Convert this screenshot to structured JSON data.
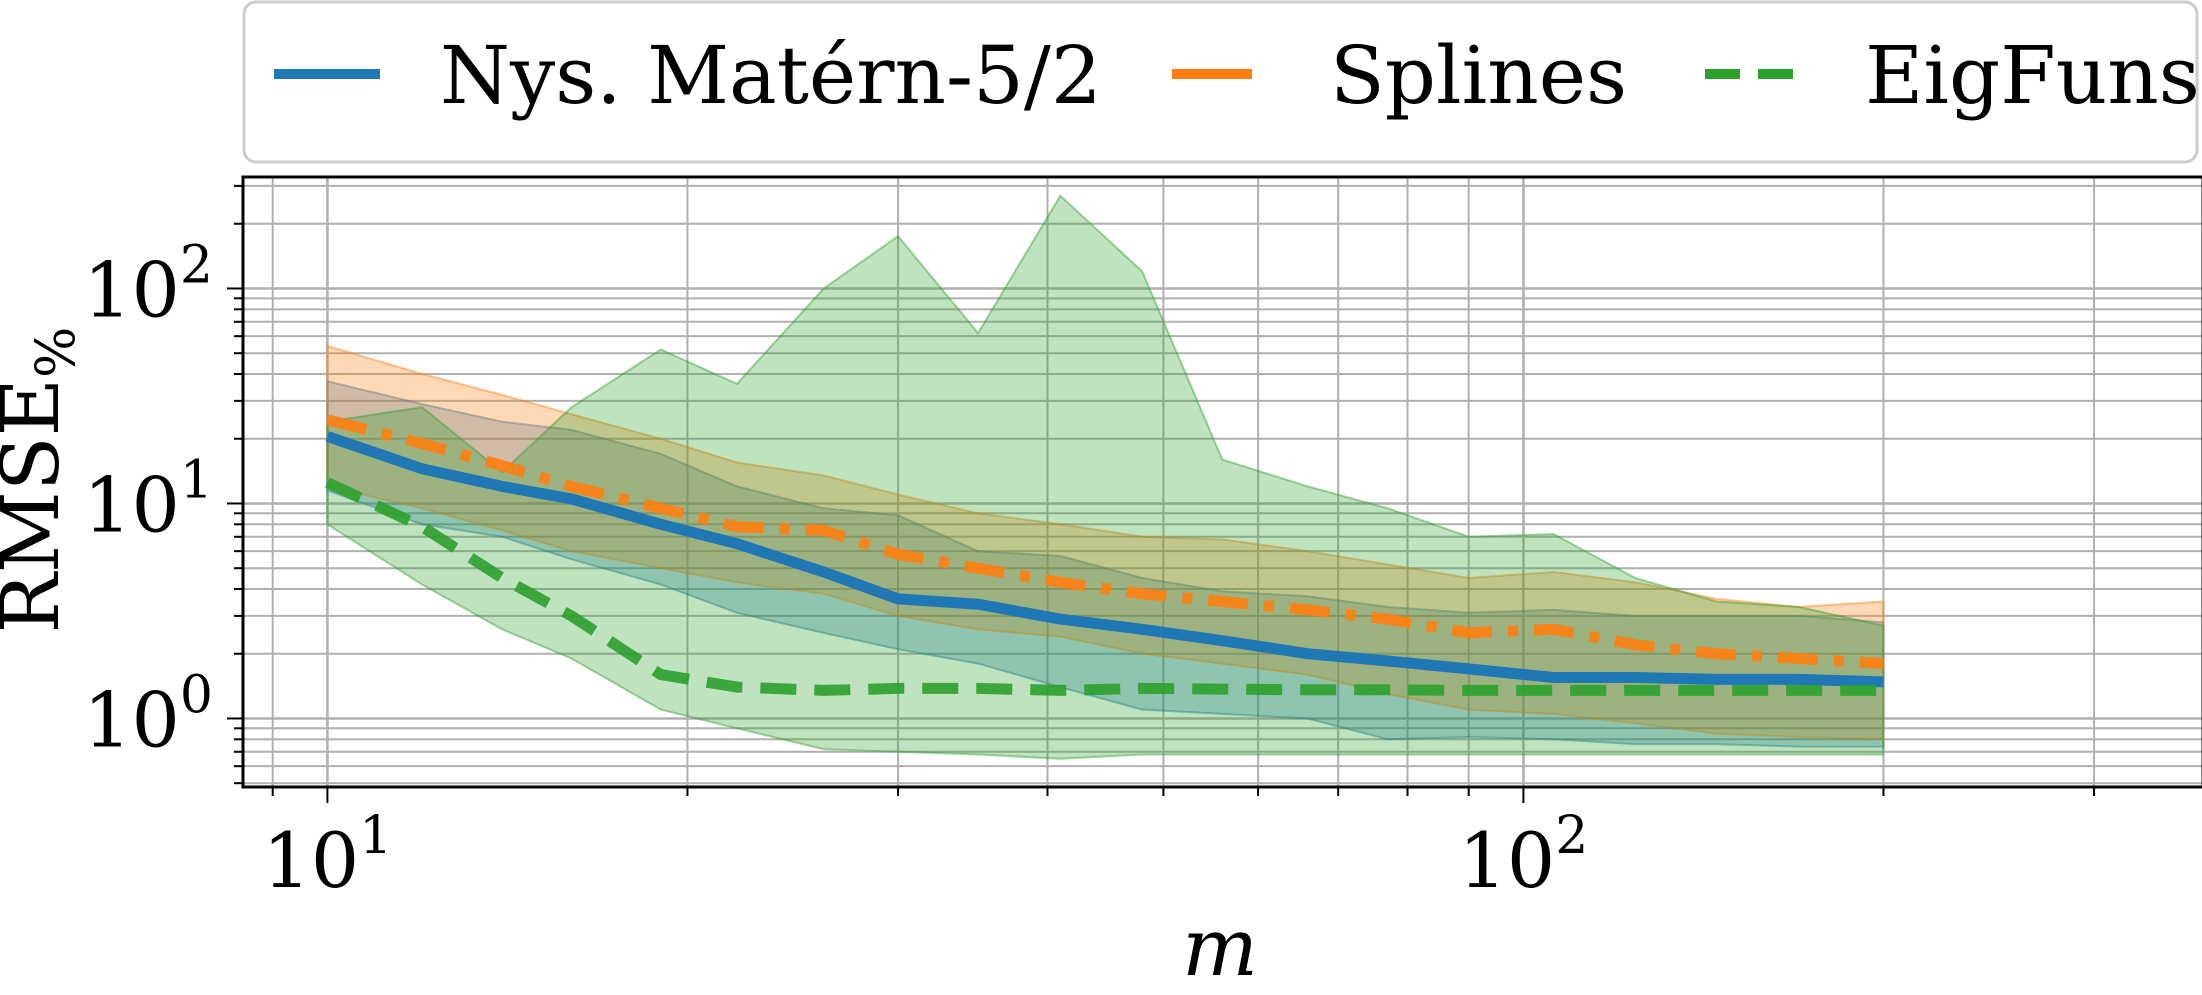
{
  "chart_data": {
    "type": "line",
    "xlabel": "m",
    "ylabel": "RMSE",
    "ylabel_subscript": "%",
    "x_scale": "log",
    "y_scale": "log",
    "xlim": [
      8.5,
      370
    ],
    "ylim": [
      0.48,
      330
    ],
    "grid": true,
    "legend_position": "top",
    "x_ticks": [
      {
        "value": 10,
        "base": "10",
        "exp": "1"
      },
      {
        "value": 100,
        "base": "10",
        "exp": "2"
      }
    ],
    "y_ticks": [
      {
        "value": 1,
        "base": "10",
        "exp": "0"
      },
      {
        "value": 10,
        "base": "10",
        "exp": "1"
      },
      {
        "value": 100,
        "base": "10",
        "exp": "2"
      }
    ],
    "series": [
      {
        "name": "Nys. Matérn-5/2",
        "color": "#1f77b4",
        "style": "solid",
        "x": [
          10,
          12,
          14,
          16,
          19,
          22,
          26,
          30,
          35,
          41,
          48,
          56,
          66,
          77,
          90,
          106,
          124,
          145,
          170,
          200
        ],
        "y": [
          20.5,
          14.5,
          12.0,
          10.5,
          8.0,
          6.5,
          4.8,
          3.6,
          3.4,
          2.9,
          2.6,
          2.3,
          2.0,
          1.85,
          1.7,
          1.55,
          1.55,
          1.52,
          1.52,
          1.48
        ],
        "band_upper": [
          37,
          29,
          24,
          22,
          17,
          12.0,
          9.5,
          8.8,
          6.0,
          5.7,
          4.5,
          3.9,
          3.7,
          3.3,
          3.1,
          3.2,
          3.0,
          3.0,
          3.0,
          2.8
        ],
        "band_lower": [
          11.5,
          8.0,
          7.0,
          5.5,
          4.2,
          3.1,
          2.5,
          2.1,
          1.8,
          1.4,
          1.1,
          1.05,
          1.0,
          0.8,
          0.82,
          0.8,
          0.76,
          0.76,
          0.74,
          0.74
        ]
      },
      {
        "name": "Splines",
        "color": "#ff7f0e",
        "style": "dashdot",
        "x": [
          10,
          12,
          14,
          16,
          19,
          22,
          26,
          30,
          35,
          41,
          48,
          56,
          66,
          77,
          90,
          106,
          124,
          145,
          170,
          200
        ],
        "y": [
          24.5,
          19.0,
          15.0,
          12.0,
          9.5,
          7.8,
          7.5,
          5.8,
          5.0,
          4.3,
          3.8,
          3.5,
          3.2,
          2.9,
          2.5,
          2.6,
          2.2,
          2.0,
          1.9,
          1.8
        ],
        "band_upper": [
          54,
          40,
          32,
          26,
          20,
          15.5,
          13.5,
          11.0,
          9.0,
          8.0,
          7.0,
          6.8,
          6.0,
          5.2,
          4.5,
          4.8,
          4.3,
          3.6,
          3.3,
          3.5
        ],
        "band_lower": [
          12.0,
          9.5,
          7.5,
          6.0,
          5.0,
          4.3,
          3.8,
          3.0,
          2.6,
          2.4,
          2.0,
          1.8,
          1.6,
          1.3,
          1.1,
          1.05,
          0.95,
          0.85,
          0.82,
          0.8
        ]
      },
      {
        "name": "EigFuns",
        "color": "#2ca02c",
        "style": "dashed",
        "x": [
          10,
          12,
          14,
          16,
          19,
          22,
          26,
          30,
          35,
          41,
          48,
          56,
          66,
          77,
          90,
          106,
          124,
          145,
          170,
          200
        ],
        "y": [
          12.5,
          7.8,
          4.5,
          3.0,
          1.6,
          1.4,
          1.35,
          1.38,
          1.38,
          1.35,
          1.38,
          1.37,
          1.36,
          1.36,
          1.35,
          1.35,
          1.35,
          1.35,
          1.35,
          1.35
        ],
        "band_upper": [
          24,
          28,
          14,
          28,
          52,
          36,
          100,
          175,
          62,
          270,
          120,
          16,
          12,
          9.5,
          7.0,
          7.2,
          4.5,
          3.5,
          3.3,
          2.7
        ],
        "band_lower": [
          8.0,
          4.2,
          2.6,
          1.9,
          1.1,
          0.9,
          0.72,
          0.7,
          0.68,
          0.65,
          0.68,
          0.68,
          0.68,
          0.68,
          0.68,
          0.68,
          0.68,
          0.68,
          0.68,
          0.68
        ]
      }
    ]
  }
}
